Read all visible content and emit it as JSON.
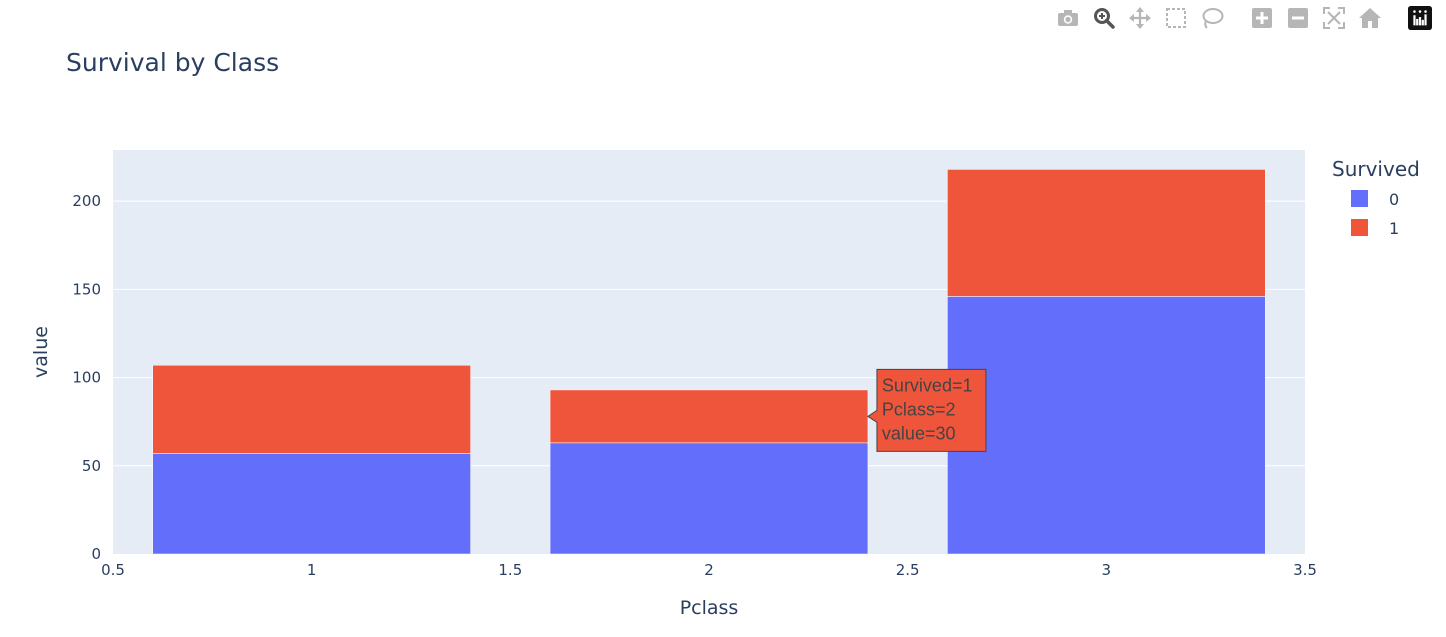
{
  "modebar": {
    "buttons": [
      {
        "name": "camera-icon"
      },
      {
        "name": "zoom-icon"
      },
      {
        "name": "pan-icon"
      },
      {
        "name": "box-select-icon"
      },
      {
        "name": "lasso-icon"
      },
      {
        "name": "zoom-in-icon"
      },
      {
        "name": "zoom-out-icon"
      },
      {
        "name": "autoscale-icon"
      },
      {
        "name": "home-icon"
      },
      {
        "name": "plotly-logo-icon"
      }
    ]
  },
  "colors": {
    "series0": "#636efa",
    "series1": "#ef553b",
    "plot_bg": "#e5ecf6",
    "text": "#2a3f5f"
  },
  "chart_data": {
    "type": "bar",
    "barmode": "stack",
    "title": "Survival by Class",
    "xlabel": "Pclass",
    "ylabel": "value",
    "categories": [
      1,
      2,
      3
    ],
    "x_ticks": [
      "0.5",
      "1",
      "1.5",
      "2",
      "2.5",
      "3",
      "3.5"
    ],
    "y_ticks": [
      "0",
      "50",
      "100",
      "150",
      "200"
    ],
    "xlim": [
      0.5,
      3.5
    ],
    "ylim": [
      0,
      229
    ],
    "grid": true,
    "legend": {
      "title": "Survived",
      "placement": "top-right",
      "entries": [
        "0",
        "1"
      ]
    },
    "series": [
      {
        "name": "0",
        "color": "#636efa",
        "values": [
          57,
          63,
          146
        ]
      },
      {
        "name": "1",
        "color": "#ef553b",
        "values": [
          50,
          30,
          72
        ]
      }
    ],
    "hover": {
      "series_index": 1,
      "category_index": 1,
      "lines": [
        "Survived=1",
        "Pclass=2",
        "value=30"
      ]
    }
  }
}
